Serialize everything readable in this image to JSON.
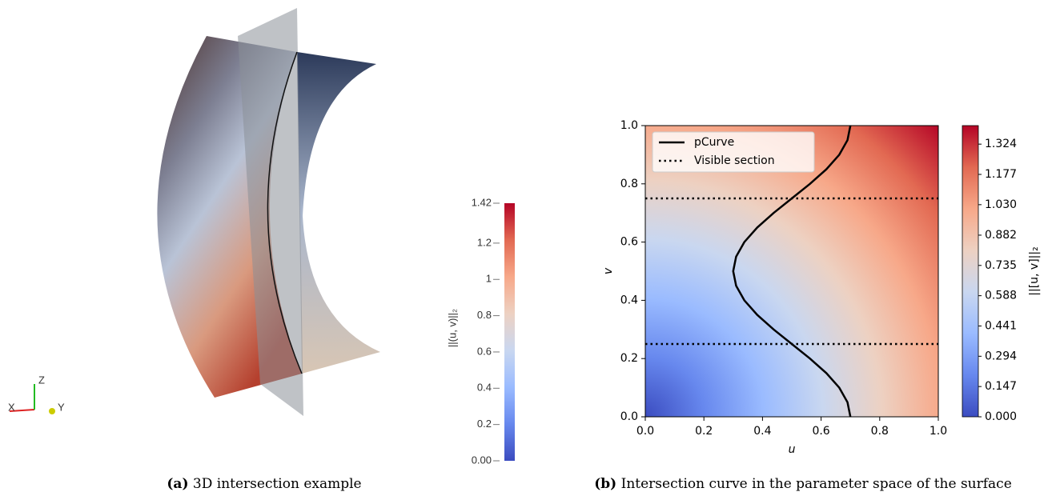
{
  "chart_data": [
    {
      "type": "colorbar-3d",
      "caption_label": "(a)",
      "caption": "3D intersection example",
      "colorbar_label": "||(u, v)||₂",
      "clim": [
        0,
        1.42
      ],
      "cticks": [
        {
          "value": 0,
          "label": "0.00"
        },
        0.2,
        0.4,
        0.6,
        0.8,
        1,
        1.2,
        1.42
      ],
      "colormap": [
        "#3b4cc0",
        "#6788ee",
        "#9abbff",
        "#c9d7f0",
        "#edd1c2",
        "#f7a889",
        "#e26952",
        "#b40426"
      ],
      "axes_labels": [
        "X",
        "Y",
        "Z"
      ]
    },
    {
      "type": "heatmap-curve",
      "caption_label": "(b)",
      "caption": "Intersection curve in the parameter space of the surface",
      "xlabel": "u",
      "ylabel": "v",
      "xlim": [
        0,
        1
      ],
      "ylim": [
        0,
        1
      ],
      "xticks": [
        {
          "value": 0,
          "label": "0.0"
        },
        0.2,
        0.4,
        0.6,
        0.8,
        {
          "value": 1,
          "label": "1.0"
        }
      ],
      "yticks": [
        {
          "value": 0,
          "label": "0.0"
        },
        0.2,
        0.4,
        0.6,
        0.8,
        {
          "value": 1,
          "label": "1.0"
        }
      ],
      "colorbar_label": "||[u, v]||₂",
      "clim": [
        0,
        1.414
      ],
      "cticks": [
        {
          "value": 0,
          "label": "0.000"
        },
        0.147,
        0.294,
        0.441,
        0.588,
        0.735,
        0.882,
        {
          "value": 1.03,
          "label": "1.030"
        },
        1.177,
        1.324
      ],
      "colormap": [
        "#3b4cc0",
        "#6788ee",
        "#9abbff",
        "#c9d7f0",
        "#edd1c2",
        "#f7a889",
        "#e26952",
        "#b40426"
      ],
      "legend": "upper left",
      "series": [
        {
          "name": "pCurve",
          "color": "#000000",
          "style": "solid",
          "x": [
            0.7,
            0.69,
            0.662,
            0.618,
            0.562,
            0.5,
            0.438,
            0.382,
            0.338,
            0.31,
            0.3,
            0.31,
            0.338,
            0.382,
            0.438,
            0.5,
            0.562,
            0.618,
            0.662,
            0.69,
            0.7
          ],
          "y": [
            0,
            0.05,
            0.1,
            0.15,
            0.2,
            0.25,
            0.3,
            0.35,
            0.4,
            0.45,
            0.5,
            0.55,
            0.6,
            0.65,
            0.7,
            0.75,
            0.8,
            0.85,
            0.9,
            0.95,
            1
          ]
        },
        {
          "name": "Visible section",
          "color": "#000000",
          "style": "dotted",
          "values": [
            0.25,
            0.75
          ]
        }
      ]
    }
  ]
}
